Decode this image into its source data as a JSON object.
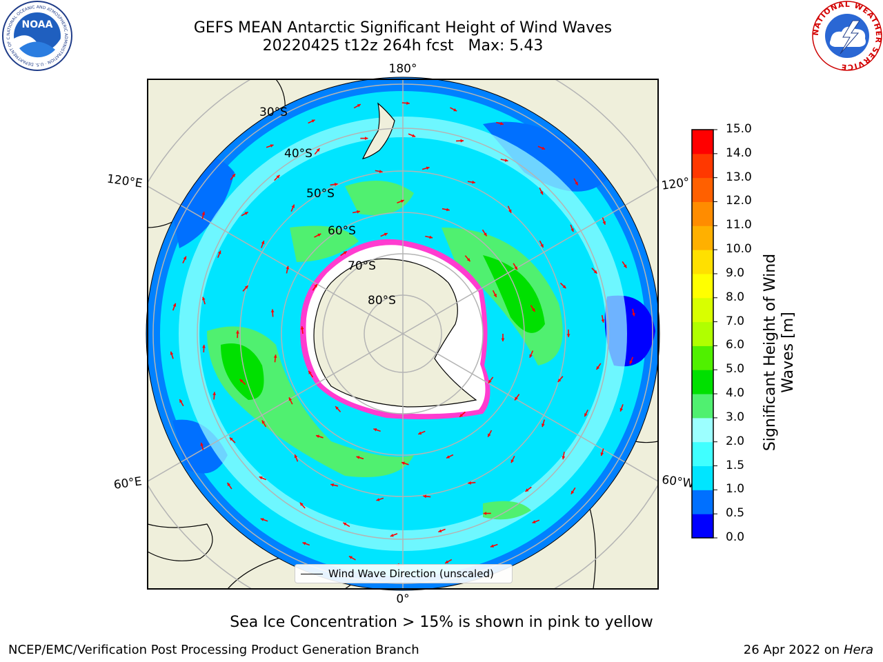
{
  "header": {
    "title_line1": "GEFS MEAN Antarctic Significant Height of Wind Waves",
    "title_line2": "20220425 t12z 264h fcst   Max: 5.43",
    "noaa_logo_text": "NOAA",
    "noaa_ring_text": "NATIONAL OCEANIC AND ATMOSPHERIC ADMINISTRATION · U.S. DEPARTMENT OF COMMERCE",
    "nws_ring_text": "NATIONAL WEATHER SERVICE"
  },
  "map": {
    "projection": "south-polar-stereographic",
    "longitude_labels": [
      "180°",
      "120°E",
      "120°",
      "60°E",
      "60°W",
      "0°"
    ],
    "latitude_labels": [
      "30°S",
      "40°S",
      "50°S",
      "60°S",
      "70°S",
      "80°S"
    ],
    "legend_label": "Wind Wave Direction (unscaled)",
    "arrow_color": "#ff0000"
  },
  "colorbar": {
    "label": "Significant Height of Wind Waves [m]",
    "ticks": [
      "0.0",
      "0.5",
      "1.0",
      "1.5",
      "2.0",
      "3.0",
      "4.0",
      "5.0",
      "6.0",
      "7.0",
      "8.0",
      "9.0",
      "10.0",
      "11.0",
      "12.0",
      "13.0",
      "14.0",
      "15.0"
    ],
    "colors": [
      "#0000ff",
      "#0070ff",
      "#00e5ff",
      "#40ffff",
      "#9cffff",
      "#50f070",
      "#00e000",
      "#50f000",
      "#b0ff00",
      "#d8ff00",
      "#ffff00",
      "#ffe000",
      "#ffb000",
      "#ff8c00",
      "#ff6000",
      "#ff3800",
      "#ff0000"
    ]
  },
  "footer": {
    "sea_ice_note": "Sea Ice Concentration > 15% is shown in pink to yellow",
    "credit": "NCEP/EMC/Verification Post Processing Product Generation Branch",
    "date_prefix": "26 Apr 2022 on",
    "date_machine": "Hera"
  }
}
